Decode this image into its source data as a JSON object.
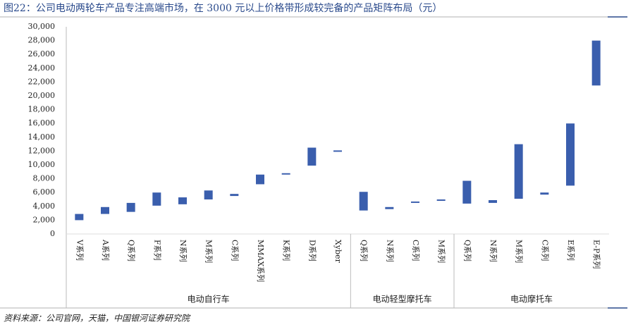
{
  "chart_data": {
    "type": "range-bar",
    "title": "图22：公司电动两轮车产品专注高端市场，在 3000 元以上价格带形成较完备的产品矩阵布局（元）",
    "source": "资料来源：公司官网，天猫，中国银河证券研究院",
    "categories": [
      "V系列",
      "A系列",
      "Q系列",
      "F系列",
      "N系列",
      "M系列",
      "C系列",
      "MMAX系列",
      "K系列",
      "D系列",
      "Xyber",
      "Q系列",
      "N系列",
      "C系列",
      "M系列",
      "Q系列",
      "N系列",
      "M系列",
      "C系列",
      "E系列",
      "E-P系列"
    ],
    "groups": [
      {
        "name": "电动自行车",
        "count": 11
      },
      {
        "name": "电动轻型摩托车",
        "count": 4
      },
      {
        "name": "电动摩托车",
        "count": 6
      }
    ],
    "low": [
      2000,
      2900,
      3200,
      4100,
      4300,
      5000,
      5500,
      7200,
      8600,
      9900,
      11900,
      3400,
      3600,
      4500,
      4800,
      4400,
      4500,
      5100,
      5700,
      7000,
      21500
    ],
    "high": [
      2900,
      3900,
      4500,
      6000,
      5300,
      6300,
      5800,
      8600,
      8800,
      12500,
      12100,
      6100,
      3900,
      4700,
      5000,
      7700,
      4900,
      13000,
      6000,
      16000,
      28000
    ],
    "color": "#3a5ead",
    "ylim": [
      0,
      30000
    ],
    "yticks": [
      0,
      {
        "value": 2000,
        "label": "2,000"
      },
      {
        "value": 4000,
        "label": "4,000"
      },
      {
        "value": 6000,
        "label": "6,000"
      },
      {
        "value": 8000,
        "label": "8,000"
      },
      {
        "value": 10000,
        "label": "10,000"
      },
      {
        "value": 12000,
        "label": "12,000"
      },
      {
        "value": 14000,
        "label": "14,000"
      },
      {
        "value": 16000,
        "label": "16,000"
      },
      {
        "value": 18000,
        "label": "18,000"
      },
      {
        "value": 20000,
        "label": "20,000"
      },
      {
        "value": 22000,
        "label": "22,000"
      },
      {
        "value": 24000,
        "label": "24,000"
      },
      {
        "value": 26000,
        "label": "26,000"
      },
      {
        "value": 28000,
        "label": "28,000"
      },
      {
        "value": 30000,
        "label": "30,000"
      }
    ]
  }
}
